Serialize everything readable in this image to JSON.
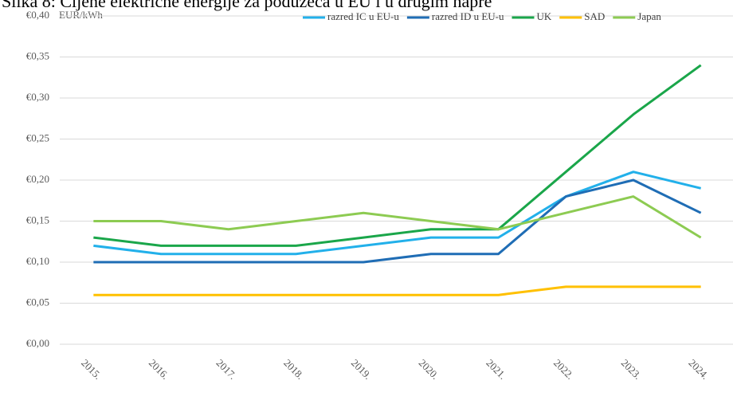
{
  "chart_data": {
    "type": "line",
    "title": "Slika 8: Cijene električne energije za poduzeća u EU i u drugim napre",
    "y_label": "EUR/kWh",
    "categories": [
      "2015.",
      "2016.",
      "2017.",
      "2018.",
      "2019.",
      "2020.",
      "2021.",
      "2022.",
      "2023.",
      "2024."
    ],
    "series": [
      {
        "name": "razred IC u EU-u",
        "color": "#22b0ea",
        "values": [
          0.12,
          0.11,
          0.11,
          0.11,
          0.12,
          0.13,
          0.13,
          0.18,
          0.21,
          0.19
        ]
      },
      {
        "name": "razred ID u EU-u",
        "color": "#1f6db5",
        "values": [
          0.1,
          0.1,
          0.1,
          0.1,
          0.1,
          0.11,
          0.11,
          0.18,
          0.2,
          0.16
        ]
      },
      {
        "name": "UK",
        "color": "#1aa64a",
        "values": [
          0.13,
          0.12,
          0.12,
          0.12,
          0.13,
          0.14,
          0.14,
          0.21,
          0.28,
          0.34
        ]
      },
      {
        "name": "SAD",
        "color": "#ffc000",
        "values": [
          0.06,
          0.06,
          0.06,
          0.06,
          0.06,
          0.06,
          0.06,
          0.07,
          0.07,
          0.07
        ]
      },
      {
        "name": "Japan",
        "color": "#8dcb52",
        "values": [
          0.15,
          0.15,
          0.14,
          0.15,
          0.16,
          0.15,
          0.14,
          0.16,
          0.18,
          0.13
        ]
      }
    ],
    "ylim": [
      0,
      0.4
    ],
    "yticks": [
      {
        "value": 0,
        "label": "€0,00"
      },
      {
        "value": 0.05,
        "label": "€0,05"
      },
      {
        "value": 0.1,
        "label": "€0,10"
      },
      {
        "value": 0.15,
        "label": "€0,15"
      },
      {
        "value": 0.2,
        "label": "€0,20"
      },
      {
        "value": 0.25,
        "label": "€0,25"
      },
      {
        "value": 0.3,
        "label": "€0,30"
      },
      {
        "value": 0.35,
        "label": "€0,35"
      },
      {
        "value": 0.4,
        "label": "€0,40"
      }
    ],
    "grid": true,
    "legend": "top-right"
  }
}
